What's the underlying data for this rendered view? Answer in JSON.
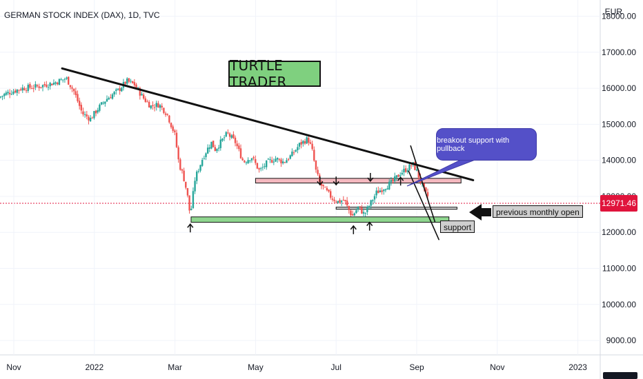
{
  "title": "GERMAN STOCK INDEX (DAX), 1D, TVC",
  "currency": "EUR",
  "last_price": "12971.46",
  "colors": {
    "up": "#26a69a",
    "down": "#ef5350",
    "price_tag": "#e0143c",
    "resistance_fill": "#f4b8bf",
    "support_fill": "#8fd68f",
    "callout": "#5450c8"
  },
  "annotations": {
    "turtle": "TURTLE TRADER",
    "callout": "breakout support with pullback",
    "monthly_open": "previous monthly open",
    "support": "support"
  },
  "chart_data": {
    "type": "candlestick",
    "title": "GERMAN STOCK INDEX (DAX), 1D, TVC",
    "y_axis": {
      "unit": "EUR",
      "ticks": [
        9000,
        10000,
        11000,
        12000,
        13000,
        14000,
        15000,
        16000,
        17000,
        18000
      ],
      "tick_labels": [
        "9000.00",
        "10000.00",
        "11000.00",
        "12000.00",
        "13000.00",
        "14000.00",
        "15000.00",
        "16000.00",
        "17000.00",
        "18000.00"
      ],
      "range": [
        8600,
        18450
      ]
    },
    "x_axis": {
      "tick_labels": [
        "Nov",
        "2022",
        "Mar",
        "May",
        "Jul",
        "Sep",
        "Nov",
        "2023"
      ],
      "tick_months": [
        0,
        2,
        4,
        6,
        8,
        10,
        12,
        14
      ],
      "range_months": [
        -0.2,
        15.6
      ]
    },
    "grid": true,
    "close_path": [
      [
        -0.6,
        15600
      ],
      [
        -0.2,
        15850
      ],
      [
        0.2,
        16000
      ],
      [
        0.6,
        16050
      ],
      [
        1.0,
        16150
      ],
      [
        1.3,
        16280
      ],
      [
        1.5,
        15900
      ],
      [
        1.7,
        15300
      ],
      [
        1.9,
        15150
      ],
      [
        2.1,
        15450
      ],
      [
        2.3,
        15700
      ],
      [
        2.6,
        15950
      ],
      [
        2.8,
        16200
      ],
      [
        3.0,
        16100
      ],
      [
        3.2,
        15750
      ],
      [
        3.4,
        15500
      ],
      [
        3.6,
        15550
      ],
      [
        3.8,
        15300
      ],
      [
        4.0,
        14700
      ],
      [
        4.1,
        13900
      ],
      [
        4.2,
        13600
      ],
      [
        4.3,
        13100
      ],
      [
        4.38,
        12450
      ],
      [
        4.5,
        13500
      ],
      [
        4.7,
        14100
      ],
      [
        4.9,
        14500
      ],
      [
        5.0,
        14300
      ],
      [
        5.1,
        14450
      ],
      [
        5.3,
        14750
      ],
      [
        5.5,
        14500
      ],
      [
        5.7,
        13950
      ],
      [
        5.9,
        14100
      ],
      [
        6.1,
        13700
      ],
      [
        6.3,
        13950
      ],
      [
        6.5,
        14050
      ],
      [
        6.7,
        13950
      ],
      [
        6.9,
        14150
      ],
      [
        7.1,
        14450
      ],
      [
        7.3,
        14600
      ],
      [
        7.4,
        14300
      ],
      [
        7.5,
        13700
      ],
      [
        7.6,
        13350
      ],
      [
        7.75,
        13150
      ],
      [
        7.9,
        12950
      ],
      [
        8.05,
        12850
      ],
      [
        8.2,
        12900
      ],
      [
        8.3,
        12650
      ],
      [
        8.4,
        12450
      ],
      [
        8.55,
        12700
      ],
      [
        8.7,
        12500
      ],
      [
        8.8,
        12700
      ],
      [
        9.0,
        13100
      ],
      [
        9.2,
        13250
      ],
      [
        9.4,
        13400
      ],
      [
        9.6,
        13650
      ],
      [
        9.8,
        13800
      ],
      [
        9.9,
        13900
      ],
      [
        10.0,
        13700
      ],
      [
        10.1,
        13400
      ],
      [
        10.2,
        13100
      ],
      [
        10.3,
        12970
      ]
    ],
    "trendlines": [
      {
        "name": "descending resistance",
        "from": [
          1.2,
          16550
        ],
        "to": [
          11.4,
          13450
        ]
      },
      {
        "name": "channel upper",
        "from": [
          9.85,
          14400
        ],
        "to": [
          10.45,
          12300
        ]
      },
      {
        "name": "channel lower",
        "from": [
          9.8,
          13700
        ],
        "to": [
          10.55,
          11800
        ]
      }
    ],
    "zones": [
      {
        "name": "resistance zone",
        "x": [
          6.0,
          11.1
        ],
        "y": [
          13370,
          13500
        ]
      },
      {
        "name": "monthly open zone",
        "x": [
          8.0,
          11.0
        ],
        "y": [
          12650,
          12700
        ]
      },
      {
        "name": "support zone",
        "x": [
          4.4,
          10.8
        ],
        "y": [
          12280,
          12430
        ]
      }
    ],
    "arrows_up": [
      [
        4.38,
        12000
      ],
      [
        8.43,
        11950
      ],
      [
        8.83,
        12050
      ],
      [
        9.6,
        13300
      ]
    ],
    "arrows_down": [
      [
        7.6,
        13550
      ],
      [
        8.0,
        13550
      ],
      [
        8.85,
        13650
      ]
    ]
  }
}
